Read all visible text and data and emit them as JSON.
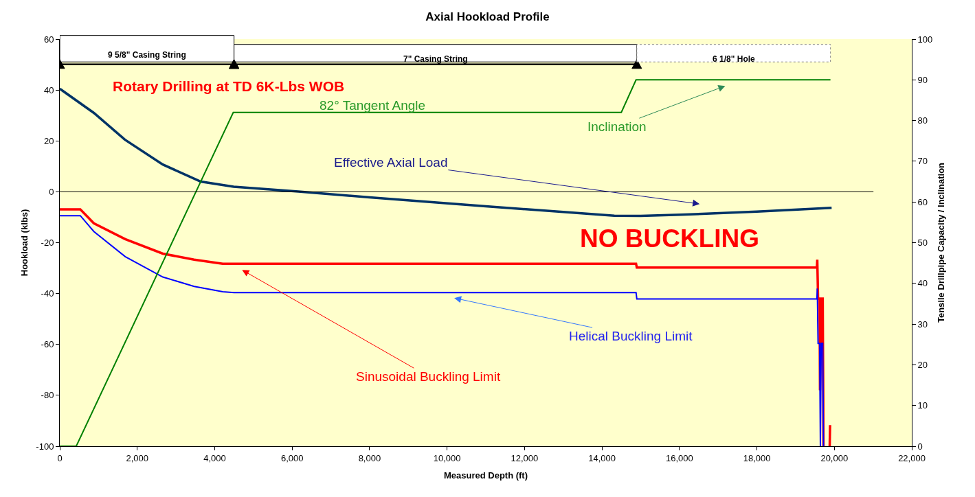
{
  "chart_data": {
    "type": "line",
    "title": "Axial Hookload Profile",
    "xlabel": "Measured Depth (ft)",
    "ylabel": "Hookload (klbs)",
    "y2label": "Tensile Drillpipe Capacity / Inclination",
    "xlim": [
      0,
      22000
    ],
    "xticks": [
      0,
      {
        "value": 2000,
        "label": "2,000"
      },
      {
        "value": 4000,
        "label": "4,000"
      },
      {
        "value": 6000,
        "label": "6,000"
      },
      {
        "value": 8000,
        "label": "8,000"
      },
      {
        "value": 10000,
        "label": "10,000"
      },
      {
        "value": 12000,
        "label": "12,000"
      },
      {
        "value": 14000,
        "label": "14,000"
      },
      {
        "value": 16000,
        "label": "16,000"
      },
      {
        "value": 18000,
        "label": "18,000"
      },
      {
        "value": 20000,
        "label": "20,000"
      },
      {
        "value": 22000,
        "label": "22,000"
      }
    ],
    "ylim": [
      -100,
      60
    ],
    "yticks": [
      -100,
      -80,
      -60,
      -40,
      -20,
      0,
      20,
      40,
      60
    ],
    "y2lim": [
      0,
      100
    ],
    "y2ticks": [
      0,
      10,
      20,
      30,
      40,
      50,
      60,
      70,
      80,
      90,
      100
    ],
    "grid": false,
    "marker": "none",
    "line_style": "solid",
    "series": [
      {
        "color": "#003366",
        "x": [
          0,
          880,
          1680,
          2660,
          3640,
          4490,
          6160,
          8000,
          11000,
          14320,
          15000,
          16030,
          18000,
          19930
        ],
        "values": [
          40.5,
          31,
          20.5,
          10.7,
          4,
          2,
          0.1,
          -2.2,
          -5.7,
          -9.4,
          -9.5,
          -9,
          -7.8,
          -6.3
        ]
      },
      {
        "color": "#008000",
        "axis": "y2",
        "x": [
          0,
          425,
          4480,
          14500,
          14880,
          19900
        ],
        "values": [
          0,
          0,
          82,
          82,
          90,
          90
        ]
      },
      {
        "color": "#ff0000",
        "x": [
          0,
          530,
          880,
          1690,
          2660,
          3470,
          4210,
          14880,
          14900,
          19550,
          19560,
          19580,
          19620,
          19630,
          19660,
          19700,
          19720,
          19800,
          19880,
          19890
        ],
        "values": [
          -6.9,
          -6.9,
          -12.4,
          -18.6,
          -24.3,
          -26.7,
          -28.3,
          -28.3,
          -29.8,
          -29.8,
          -26.7,
          -42,
          -42,
          -78,
          -42,
          -42,
          -100,
          null,
          -100,
          -91.7
        ]
      },
      {
        "color": "#0000ff",
        "x": [
          0,
          530,
          880,
          1690,
          2660,
          3470,
          4210,
          4500,
          14880,
          14900,
          19550,
          19560,
          19580,
          19620,
          19640,
          19660,
          19700,
          19720
        ],
        "values": [
          -9.4,
          -9.4,
          -15.6,
          -25.5,
          -33.5,
          -37.2,
          -39.3,
          -39.6,
          -39.6,
          -42.1,
          -42.1,
          -38,
          -59.6,
          -59.6,
          -100,
          -59.6,
          -59.6,
          -100
        ]
      }
    ],
    "ref_lines": [
      {
        "axis": "y",
        "value": 0,
        "color": "#000000"
      }
    ],
    "bands": [
      {
        "axis": "x",
        "from": 0,
        "to": 4500,
        "label": "9 5/8\" Casing String",
        "color": "#ffffff"
      },
      {
        "axis": "x",
        "from": 4500,
        "to": 14900,
        "label": "7\" Casing String",
        "color": "#ffffff"
      },
      {
        "axis": "x",
        "from": 14900,
        "to": 19900,
        "label": "6 1/8\" Hole",
        "color": "#ffffff"
      }
    ],
    "annotations": [
      "Rotary Drilling at TD 6K-Lbs WOB",
      "82° Tangent Angle",
      "NO BUCKLING",
      "Effective Axial Load",
      "Inclination",
      "Helical Buckling Limit",
      "Sinusoidal Buckling Limit"
    ]
  }
}
